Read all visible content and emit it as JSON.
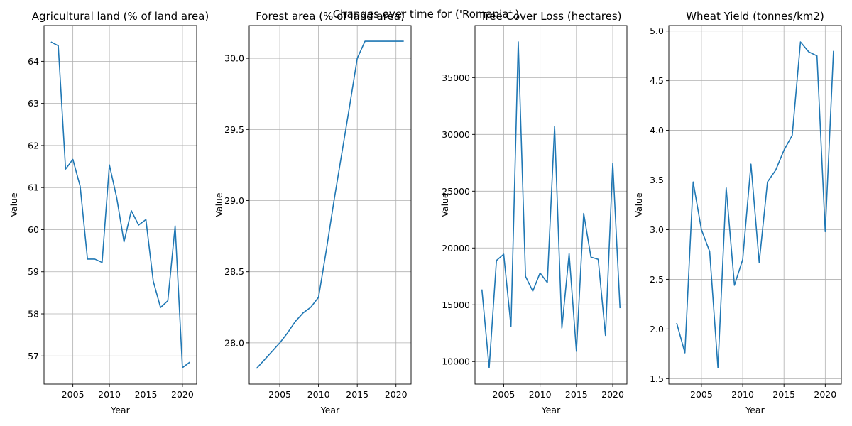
{
  "suptitle": "Changes over time for ('Romania',)",
  "chart_data": [
    {
      "type": "line",
      "title": "Agricultural land (% of land area)",
      "xlabel": "Year",
      "ylabel": "Value",
      "x": [
        2002,
        2003,
        2004,
        2005,
        2006,
        2007,
        2008,
        2009,
        2010,
        2011,
        2012,
        2013,
        2014,
        2015,
        2016,
        2017,
        2018,
        2019,
        2020,
        2021
      ],
      "series": [
        {
          "values": [
            64.46,
            64.37,
            61.44,
            61.67,
            61.03,
            59.3,
            59.3,
            59.22,
            61.54,
            60.76,
            59.71,
            60.45,
            60.11,
            60.24,
            58.78,
            58.15,
            58.31,
            60.09,
            56.72,
            56.85
          ]
        }
      ],
      "xlim": [
        2001.05,
        2021.95
      ],
      "ylim": [
        56.33,
        64.85
      ],
      "xticks": [
        2005,
        2010,
        2015,
        2020
      ],
      "yticks": [
        57,
        58,
        59,
        60,
        61,
        62,
        63,
        64
      ],
      "grid": true,
      "line_color": "#1f77b4"
    },
    {
      "type": "line",
      "title": "Forest area (% of land area)",
      "xlabel": "Year",
      "ylabel": "Value",
      "x": [
        2002,
        2003,
        2004,
        2005,
        2006,
        2007,
        2008,
        2009,
        2010,
        2011,
        2012,
        2013,
        2014,
        2015,
        2016,
        2017,
        2018,
        2019,
        2020,
        2021
      ],
      "series": [
        {
          "values": [
            27.82,
            27.88,
            27.94,
            28.0,
            28.07,
            28.15,
            28.21,
            28.25,
            28.32,
            28.65,
            29.0,
            29.33,
            29.66,
            30.0,
            30.12,
            30.12,
            30.12,
            30.12,
            30.12,
            30.12
          ]
        }
      ],
      "xlim": [
        2001.05,
        2021.95
      ],
      "ylim": [
        27.71,
        30.23
      ],
      "xticks": [
        2005,
        2010,
        2015,
        2020
      ],
      "yticks": [
        28.0,
        28.5,
        29.0,
        29.5,
        30.0
      ],
      "ytick_labels": [
        "28.0",
        "28.5",
        "29.0",
        "29.5",
        "30.0"
      ],
      "grid": true,
      "line_color": "#1f77b4"
    },
    {
      "type": "line",
      "title": "Tree Cover Loss (hectares)",
      "xlabel": "Year",
      "ylabel": "Value",
      "x": [
        2002,
        2003,
        2004,
        2005,
        2006,
        2007,
        2008,
        2009,
        2010,
        2011,
        2012,
        2013,
        2014,
        2015,
        2016,
        2017,
        2018,
        2019,
        2020,
        2021
      ],
      "series": [
        {
          "values": [
            16350,
            9450,
            18900,
            19450,
            13100,
            38150,
            17500,
            16200,
            17800,
            16950,
            30700,
            12950,
            19500,
            10900,
            23050,
            19200,
            19000,
            12300,
            27450,
            14700
          ]
        }
      ],
      "xlim": [
        2001.05,
        2021.95
      ],
      "ylim": [
        8015,
        39585
      ],
      "xticks": [
        2005,
        2010,
        2015,
        2020
      ],
      "yticks": [
        10000,
        15000,
        20000,
        25000,
        30000,
        35000
      ],
      "grid": true,
      "line_color": "#1f77b4"
    },
    {
      "type": "line",
      "title": "Wheat Yield (tonnes/km2)",
      "xlabel": "Year",
      "ylabel": "Value",
      "x": [
        2002,
        2003,
        2004,
        2005,
        2006,
        2007,
        2008,
        2009,
        2010,
        2011,
        2012,
        2013,
        2014,
        2015,
        2016,
        2017,
        2018,
        2019,
        2020,
        2021
      ],
      "series": [
        {
          "values": [
            2.06,
            1.76,
            3.48,
            3.0,
            2.78,
            1.61,
            3.42,
            2.44,
            2.7,
            3.66,
            2.67,
            3.48,
            3.6,
            3.8,
            3.95,
            4.89,
            4.79,
            4.75,
            2.98,
            4.8
          ]
        }
      ],
      "xlim": [
        2001.05,
        2021.95
      ],
      "ylim": [
        1.445,
        5.055
      ],
      "xticks": [
        2005,
        2010,
        2015,
        2020
      ],
      "yticks": [
        1.5,
        2.0,
        2.5,
        3.0,
        3.5,
        4.0,
        4.5,
        5.0
      ],
      "ytick_labels": [
        "1.5",
        "2.0",
        "2.5",
        "3.0",
        "3.5",
        "4.0",
        "4.5",
        "5.0"
      ],
      "grid": true,
      "line_color": "#1f77b4"
    }
  ]
}
